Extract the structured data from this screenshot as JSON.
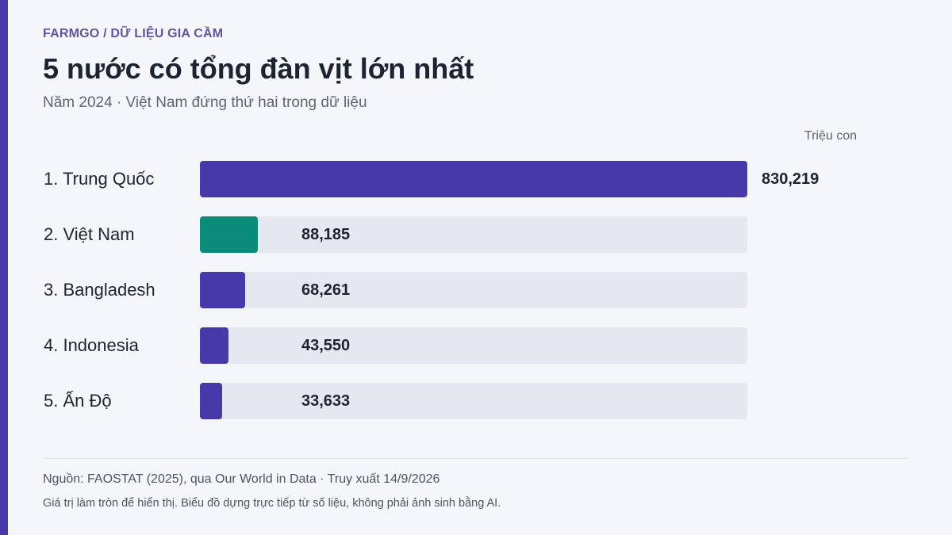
{
  "header": {
    "kicker": "FARMGO / DỮ LIỆU GIA CẦM",
    "title": "5 nước có tổng đàn vịt lớn nhất",
    "subtitle": "Năm 2024 · Việt Nam đứng thứ hai trong dữ liệu"
  },
  "colors": {
    "accent": "#463aab",
    "highlight": "#0b8c78",
    "track": "#e6e8f1"
  },
  "chart_data": {
    "type": "bar",
    "orientation": "horizontal",
    "unit_label": "Triệu con",
    "categories": [
      "1. Trung Quốc",
      "2. Việt Nam",
      "3. Bangladesh",
      "4. Indonesia",
      "5. Ấn Độ"
    ],
    "values": [
      830219,
      88185,
      68261,
      43550,
      33633
    ],
    "value_labels": [
      "830,219",
      "88,185",
      "68,261",
      "43,550",
      "33,633"
    ],
    "highlight_category": "2. Việt Nam",
    "xlim": [
      0,
      830219
    ],
    "grid": false,
    "legend": "none"
  },
  "footer": {
    "source": "Nguồn: FAOSTAT (2025), qua Our World in Data · Truy xuất 14/9/2026",
    "note": "Giá trị làm tròn để hiển thị. Biểu đồ dựng trực tiếp từ số liệu, không phải ảnh sinh bằng AI."
  }
}
